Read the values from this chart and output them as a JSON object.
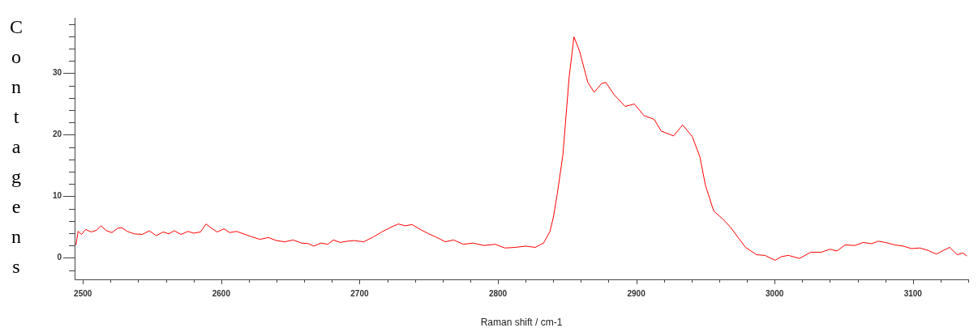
{
  "chart_data": {
    "type": "line",
    "xlabel": "Raman shift / cm-1",
    "ylabel": "Contagens",
    "x": [
      2495,
      2496.5,
      2499,
      2502,
      2506,
      2510,
      2513,
      2517,
      2521,
      2525,
      2528,
      2532,
      2537,
      2543,
      2548,
      2553,
      2558,
      2562,
      2566,
      2571,
      2576,
      2580,
      2585,
      2589,
      2593,
      2597,
      2602,
      2606,
      2611,
      2616,
      2621,
      2628,
      2634,
      2640,
      2646,
      2652,
      2658,
      2663,
      2667,
      2672,
      2677,
      2681,
      2686,
      2691,
      2696,
      2703,
      2710,
      2716,
      2722,
      2728,
      2733,
      2738,
      2744,
      2750,
      2756,
      2762,
      2768,
      2775,
      2782,
      2790,
      2798,
      2805,
      2812.6,
      2820,
      2827,
      2833,
      2837.6,
      2840,
      2843,
      2847,
      2851.5,
      2855,
      2859,
      2865,
      2869.6,
      2874.8,
      2878,
      2884,
      2892,
      2898.6,
      2905.6,
      2913,
      2918,
      2927,
      2933.5,
      2940.5,
      2946,
      2950,
      2956,
      2962.6,
      2968,
      2974,
      2979,
      2987,
      2993,
      3000.4,
      3005,
      3010,
      3018,
      3026,
      3033.5,
      3040,
      3045,
      3051,
      3058,
      3064,
      3070,
      3075,
      3080,
      3087,
      3093,
      3099,
      3105,
      3111,
      3117,
      3122,
      3126.5,
      3132,
      3136,
      3139
    ],
    "series": [
      {
        "color": "#ff0000",
        "values": [
          2.1,
          4.3,
          3.8,
          4.6,
          4.2,
          4.5,
          5.2,
          4.4,
          4.1,
          4.8,
          4.9,
          4.3,
          3.9,
          3.8,
          4.4,
          3.6,
          4.2,
          3.9,
          4.4,
          3.8,
          4.3,
          4.0,
          4.2,
          5.5,
          4.8,
          4.2,
          4.7,
          4.1,
          4.3,
          3.9,
          3.5,
          3.0,
          3.3,
          2.8,
          2.6,
          2.9,
          2.4,
          2.3,
          1.9,
          2.4,
          2.2,
          2.9,
          2.5,
          2.7,
          2.8,
          2.6,
          3.4,
          4.2,
          4.9,
          5.5,
          5.2,
          5.4,
          4.6,
          3.9,
          3.3,
          2.6,
          2.9,
          2.2,
          2.4,
          2.0,
          2.2,
          1.6,
          1.7,
          1.9,
          1.7,
          2.4,
          4.3,
          6.5,
          10.5,
          16.8,
          29.4,
          35.9,
          33.6,
          28.5,
          26.9,
          28.3,
          28.5,
          26.5,
          24.6,
          25.0,
          23.1,
          22.5,
          20.6,
          19.8,
          21.6,
          19.7,
          16.4,
          11.8,
          7.6,
          6.3,
          5.0,
          3.2,
          1.7,
          0.5,
          0.4,
          -0.4,
          0.2,
          0.4,
          -0.1,
          0.9,
          0.9,
          1.4,
          1.1,
          2.1,
          2.0,
          2.5,
          2.3,
          2.7,
          2.5,
          2.1,
          1.9,
          1.5,
          1.6,
          1.2,
          0.6,
          1.2,
          1.7,
          0.5,
          0.8,
          0.3
        ]
      }
    ],
    "xlim": [
      2494,
      3140
    ],
    "xticks": [
      {
        "value": 2500,
        "label": "2500"
      },
      {
        "value": 2520,
        "label": null
      },
      {
        "value": 2540,
        "label": null
      },
      {
        "value": 2560,
        "label": null
      },
      {
        "value": 2580,
        "label": null
      },
      {
        "value": 2600,
        "label": "2600"
      },
      {
        "value": 2620,
        "label": null
      },
      {
        "value": 2640,
        "label": null
      },
      {
        "value": 2660,
        "label": null
      },
      {
        "value": 2680,
        "label": null
      },
      {
        "value": 2700,
        "label": "2700"
      },
      {
        "value": 2720,
        "label": null
      },
      {
        "value": 2740,
        "label": null
      },
      {
        "value": 2760,
        "label": null
      },
      {
        "value": 2780,
        "label": null
      },
      {
        "value": 2800,
        "label": "2800"
      },
      {
        "value": 2820,
        "label": null
      },
      {
        "value": 2840,
        "label": null
      },
      {
        "value": 2860,
        "label": null
      },
      {
        "value": 2880,
        "label": null
      },
      {
        "value": 2900,
        "label": "2900"
      },
      {
        "value": 2920,
        "label": null
      },
      {
        "value": 2940,
        "label": null
      },
      {
        "value": 2960,
        "label": null
      },
      {
        "value": 2980,
        "label": null
      },
      {
        "value": 3000,
        "label": "3000"
      },
      {
        "value": 3020,
        "label": null
      },
      {
        "value": 3040,
        "label": null
      },
      {
        "value": 3060,
        "label": null
      },
      {
        "value": 3080,
        "label": null
      },
      {
        "value": 3100,
        "label": "3100"
      },
      {
        "value": 3120,
        "label": null
      },
      {
        "value": 3140,
        "label": null
      }
    ],
    "ylim": [
      -3.5,
      39
    ],
    "yticks": [
      {
        "value": -2,
        "label": null
      },
      {
        "value": 0,
        "label": "0"
      },
      {
        "value": 2,
        "label": null
      },
      {
        "value": 4,
        "label": null
      },
      {
        "value": 6,
        "label": null
      },
      {
        "value": 8,
        "label": null
      },
      {
        "value": 10,
        "label": "10"
      },
      {
        "value": 12,
        "label": null
      },
      {
        "value": 14,
        "label": null
      },
      {
        "value": 16,
        "label": null
      },
      {
        "value": 18,
        "label": null
      },
      {
        "value": 20,
        "label": "20"
      },
      {
        "value": 22,
        "label": null
      },
      {
        "value": 24,
        "label": null
      },
      {
        "value": 26,
        "label": null
      },
      {
        "value": 28,
        "label": null
      },
      {
        "value": 30,
        "label": "30"
      },
      {
        "value": 32,
        "label": null
      },
      {
        "value": 34,
        "label": null
      },
      {
        "value": 36,
        "label": null
      },
      {
        "value": 38,
        "label": null
      }
    ],
    "grid": false,
    "legend": false,
    "marker": "none",
    "line_style": "solid"
  }
}
